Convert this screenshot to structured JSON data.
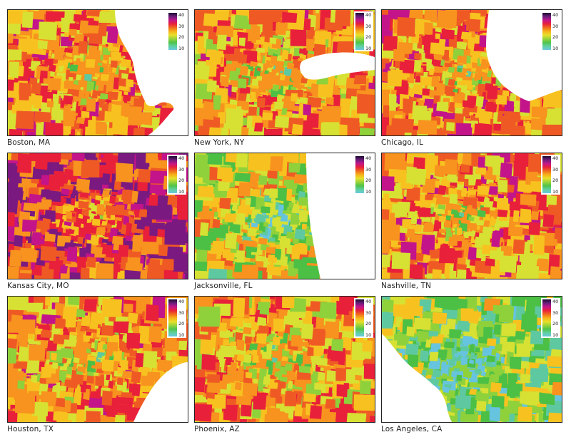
{
  "figure": {
    "panels": [
      {
        "id": "boston",
        "label": "Boston, MA",
        "level": 0.62,
        "water": "ne-coast"
      },
      {
        "id": "newyork",
        "label": "New York, NY",
        "level": 0.58,
        "water": "sound"
      },
      {
        "id": "chicago",
        "label": "Chicago, IL",
        "level": 0.62,
        "water": "lake"
      },
      {
        "id": "kansascity",
        "label": "Kansas City, MO",
        "level": 0.78,
        "water": "none"
      },
      {
        "id": "jacksonville",
        "label": "Jacksonville, FL",
        "level": 0.42,
        "water": "atlantic"
      },
      {
        "id": "nashville",
        "label": "Nashville, TN",
        "level": 0.62,
        "water": "none"
      },
      {
        "id": "houston",
        "label": "Houston, TX",
        "level": 0.6,
        "water": "gulf"
      },
      {
        "id": "phoenix",
        "label": "Phoenix, AZ",
        "level": 0.56,
        "water": "none"
      },
      {
        "id": "losangeles",
        "label": "Los Angeles, CA",
        "level": 0.3,
        "water": "pacific"
      }
    ],
    "legend": {
      "ticks": [
        "40",
        "30",
        "20",
        "10"
      ],
      "colors": [
        "#1a0a2e",
        "#6a1d7a",
        "#c3148a",
        "#e8213a",
        "#f06a1c",
        "#f7b21a",
        "#e6e02a",
        "#9bd33a",
        "#4fc44a",
        "#5fd0a0",
        "#6ac8e0"
      ]
    },
    "palette": {
      "water": "#ffffff",
      "map_scale": [
        "#66c4df",
        "#5ec9a0",
        "#4cbf45",
        "#8fd13b",
        "#d7e133",
        "#f7c21f",
        "#f7931e",
        "#ef5a24",
        "#e8203a",
        "#c3148a",
        "#7a1a80",
        "#1a0a2e"
      ]
    }
  }
}
